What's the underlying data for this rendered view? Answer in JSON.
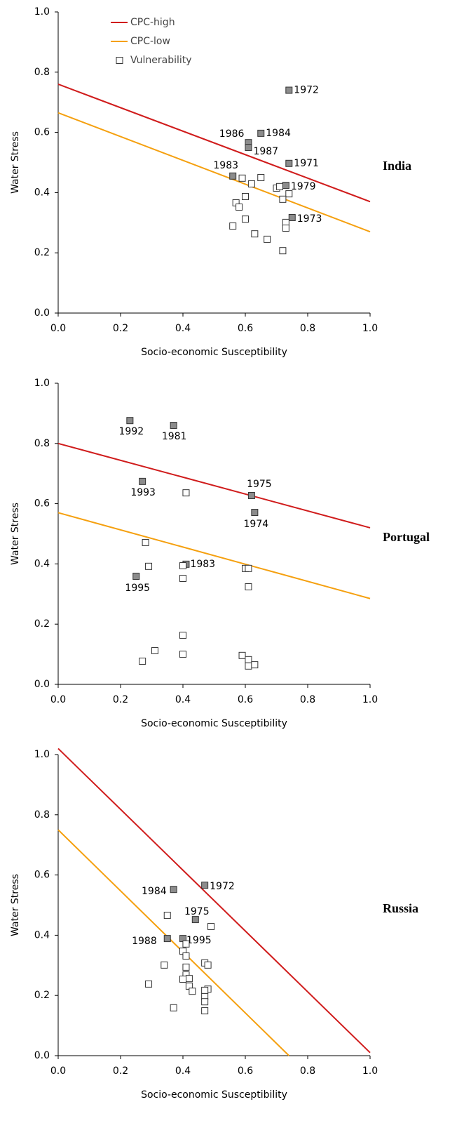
{
  "chart_data": [
    {
      "type": "scatter",
      "title": "India",
      "xlabel": "Socio-economic Susceptibility",
      "ylabel": "Water Stress",
      "xlim": [
        0,
        1
      ],
      "ylim": [
        0,
        1
      ],
      "xticks": [
        {
          "value": 0,
          "label": "0.0"
        },
        {
          "value": 0.2,
          "label": "0.2"
        },
        {
          "value": 0.4,
          "label": "0.4"
        },
        {
          "value": 0.6,
          "label": "0.6"
        },
        {
          "value": 0.8,
          "label": "0.8"
        },
        {
          "value": 1,
          "label": "1.0"
        }
      ],
      "yticks": [
        {
          "value": 0,
          "label": "0.0"
        },
        {
          "value": 0.2,
          "label": "0.2"
        },
        {
          "value": 0.4,
          "label": "0.4"
        },
        {
          "value": 0.6,
          "label": "0.6"
        },
        {
          "value": 0.8,
          "label": "0.8"
        },
        {
          "value": 1,
          "label": "1.0"
        }
      ],
      "legend": "upper left",
      "series": [
        {
          "name": "CPC-high",
          "type": "line",
          "color": "#d01c1c",
          "x": [
            0,
            1
          ],
          "values": [
            0.76,
            0.37
          ]
        },
        {
          "name": "CPC-low",
          "type": "line",
          "color": "#f5a00f",
          "x": [
            0,
            1
          ],
          "values": [
            0.665,
            0.27
          ]
        },
        {
          "name": "Vulnerability",
          "type": "scatter",
          "color": "#333333",
          "highlight_fill": "#8c8c8c",
          "x": [
            0.74,
            0.61,
            0.65,
            0.61,
            0.74,
            0.56,
            0.73,
            0.75,
            0.59,
            0.65,
            0.62,
            0.6,
            0.7,
            0.71,
            0.74,
            0.72,
            0.57,
            0.58,
            0.6,
            0.56,
            0.73,
            0.73,
            0.63,
            0.67,
            0.72
          ],
          "values": [
            0.74,
            0.566,
            0.597,
            0.55,
            0.497,
            0.455,
            0.424,
            0.317,
            0.448,
            0.45,
            0.429,
            0.387,
            0.415,
            0.42,
            0.396,
            0.378,
            0.366,
            0.352,
            0.312,
            0.289,
            0.301,
            0.282,
            0.263,
            0.245,
            0.207
          ],
          "labels": [
            "1972",
            "1986",
            "1984",
            "1987",
            "1971",
            "1983",
            "1979",
            "1973",
            null,
            null,
            null,
            null,
            null,
            null,
            null,
            null,
            null,
            null,
            null,
            null,
            null,
            null,
            null,
            null,
            null
          ]
        }
      ]
    },
    {
      "type": "scatter",
      "title": "Portugal",
      "xlabel": "Socio-economic Susceptibility",
      "ylabel": "Water Stress",
      "xlim": [
        0,
        1
      ],
      "ylim": [
        0,
        1
      ],
      "xticks": [
        {
          "value": 0,
          "label": "0.0"
        },
        {
          "value": 0.2,
          "label": "0.2"
        },
        {
          "value": 0.4,
          "label": "0.4"
        },
        {
          "value": 0.6,
          "label": "0.6"
        },
        {
          "value": 0.8,
          "label": "0.8"
        },
        {
          "value": 1,
          "label": "1.0"
        }
      ],
      "yticks": [
        {
          "value": 0,
          "label": "0.0"
        },
        {
          "value": 0.2,
          "label": "0.2"
        },
        {
          "value": 0.4,
          "label": "0.4"
        },
        {
          "value": 0.6,
          "label": "0.6"
        },
        {
          "value": 0.8,
          "label": "0.8"
        },
        {
          "value": 1,
          "label": "1.0"
        }
      ],
      "series": [
        {
          "name": "CPC-high",
          "type": "line",
          "color": "#d01c1c",
          "x": [
            0,
            1
          ],
          "values": [
            0.8,
            0.52
          ]
        },
        {
          "name": "CPC-low",
          "type": "line",
          "color": "#f5a00f",
          "x": [
            0,
            1
          ],
          "values": [
            0.57,
            0.285
          ]
        },
        {
          "name": "Vulnerability",
          "type": "scatter",
          "color": "#333333",
          "highlight_fill": "#8c8c8c",
          "x": [
            0.23,
            0.37,
            0.27,
            0.62,
            0.63,
            0.41,
            0.25,
            0.41,
            0.28,
            0.29,
            0.4,
            0.4,
            0.6,
            0.61,
            0.61,
            0.4,
            0.31,
            0.27,
            0.4,
            0.59,
            0.61,
            0.61,
            0.63
          ],
          "values": [
            0.876,
            0.86,
            0.674,
            0.627,
            0.571,
            0.399,
            0.359,
            0.636,
            0.471,
            0.392,
            0.394,
            0.352,
            0.385,
            0.385,
            0.324,
            0.163,
            0.112,
            0.077,
            0.1,
            0.096,
            0.082,
            0.061,
            0.065
          ],
          "labels": [
            "1992",
            "1981",
            "1993",
            "1975",
            "1974",
            "1983",
            "1995",
            null,
            null,
            null,
            null,
            null,
            null,
            null,
            null,
            null,
            null,
            null,
            null,
            null,
            null,
            null,
            null
          ]
        }
      ]
    },
    {
      "type": "scatter",
      "title": "Russia",
      "xlabel": "Socio-economic Susceptibility",
      "ylabel": "Water Stress",
      "xlim": [
        0,
        1
      ],
      "ylim": [
        0,
        1
      ],
      "xticks": [
        {
          "value": 0,
          "label": "0.0"
        },
        {
          "value": 0.2,
          "label": "0.2"
        },
        {
          "value": 0.4,
          "label": "0.4"
        },
        {
          "value": 0.6,
          "label": "0.6"
        },
        {
          "value": 0.8,
          "label": "0.8"
        },
        {
          "value": 1,
          "label": "1.0"
        }
      ],
      "yticks": [
        {
          "value": 0,
          "label": "0.0"
        },
        {
          "value": 0.2,
          "label": "0.2"
        },
        {
          "value": 0.4,
          "label": "0.4"
        },
        {
          "value": 0.6,
          "label": "0.6"
        },
        {
          "value": 0.8,
          "label": "0.8"
        },
        {
          "value": 1,
          "label": "1.0"
        }
      ],
      "series": [
        {
          "name": "CPC-high",
          "type": "line",
          "color": "#d01c1c",
          "x": [
            0,
            1
          ],
          "values": [
            1.02,
            0.01
          ]
        },
        {
          "name": "CPC-low",
          "type": "line",
          "color": "#f5a00f",
          "x": [
            0,
            0.74
          ],
          "values": [
            0.75,
            0
          ]
        },
        {
          "name": "Vulnerability",
          "type": "scatter",
          "color": "#333333",
          "highlight_fill": "#8c8c8c",
          "x": [
            0.37,
            0.47,
            0.44,
            0.35,
            0.4,
            0.35,
            0.49,
            0.41,
            0.4,
            0.41,
            0.34,
            0.41,
            0.47,
            0.48,
            0.29,
            0.41,
            0.42,
            0.4,
            0.42,
            0.43,
            0.48,
            0.47,
            0.47,
            0.47,
            0.37,
            0.47
          ],
          "values": [
            0.552,
            0.566,
            0.452,
            0.389,
            0.389,
            0.466,
            0.429,
            0.371,
            0.347,
            0.331,
            0.301,
            0.294,
            0.308,
            0.301,
            0.238,
            0.268,
            0.256,
            0.254,
            0.231,
            0.214,
            0.221,
            0.217,
            0.196,
            0.179,
            0.159,
            0.149
          ],
          "labels": [
            "1984",
            "1972",
            "1975",
            "1988",
            "1995",
            null,
            null,
            null,
            null,
            null,
            null,
            null,
            null,
            null,
            null,
            null,
            null,
            null,
            null,
            null,
            null,
            null,
            null,
            null,
            null,
            null
          ]
        }
      ]
    }
  ]
}
